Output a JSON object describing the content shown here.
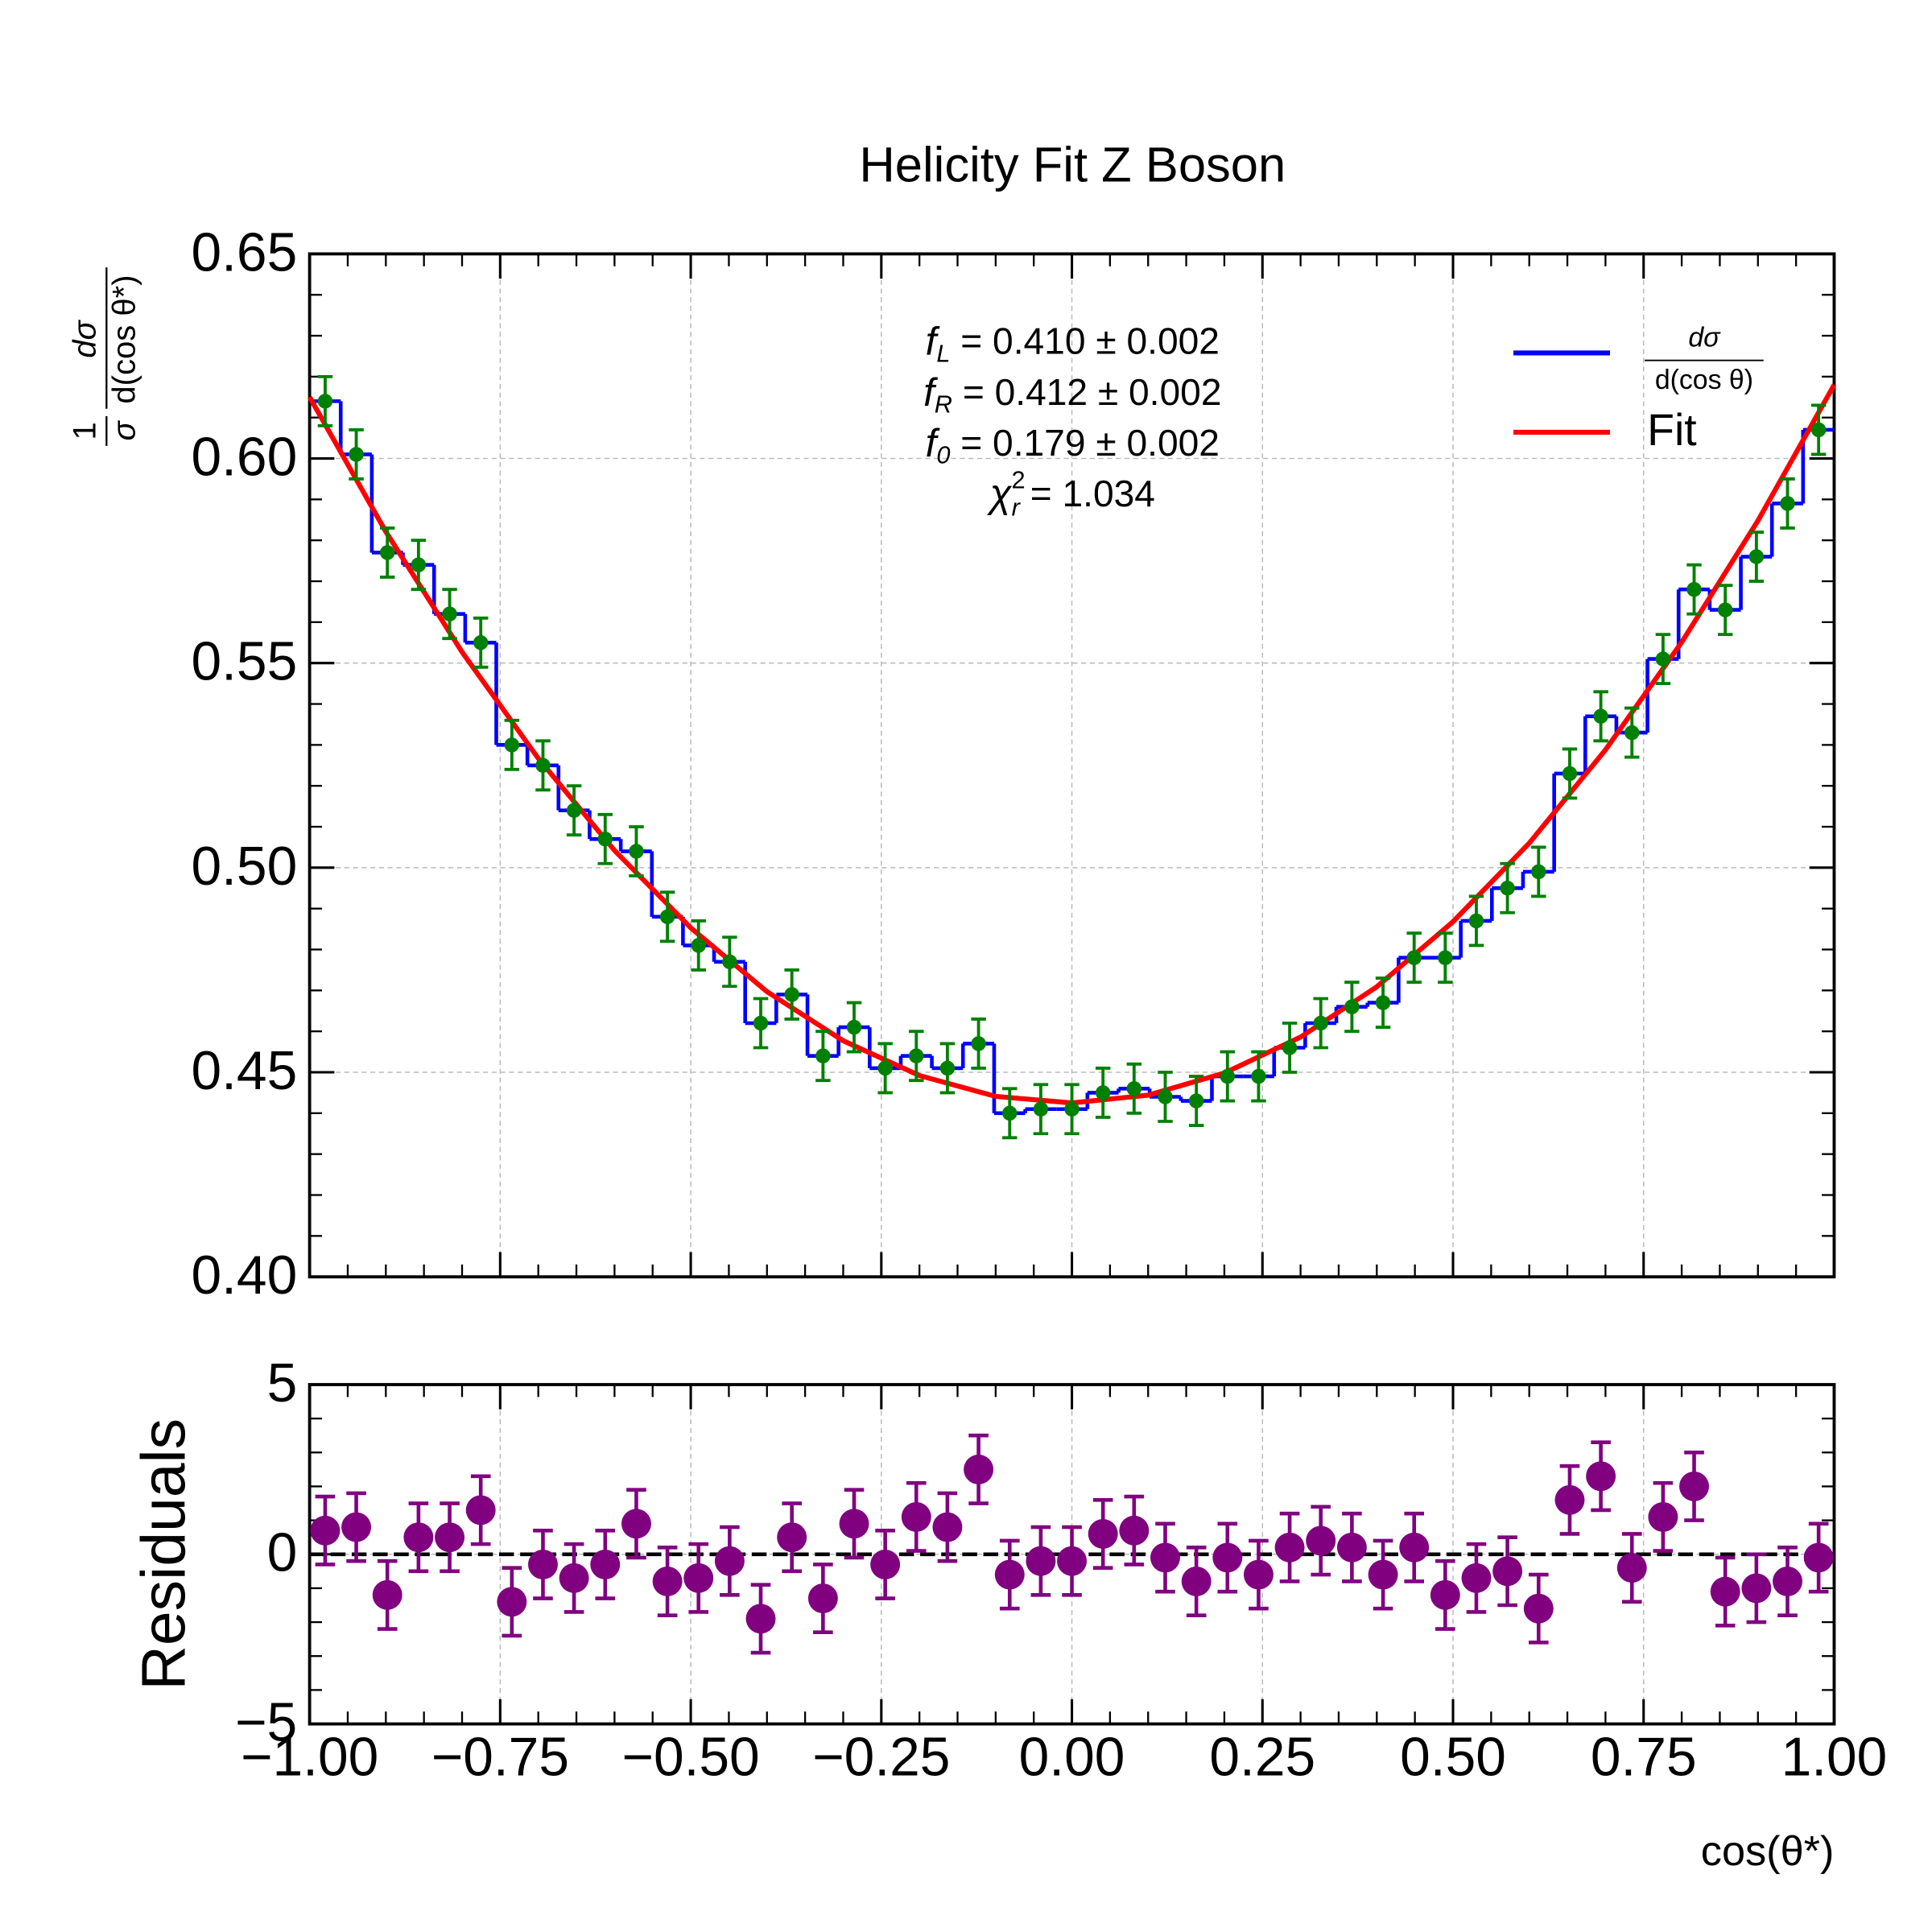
{
  "chart_data": [
    {
      "type": "histogram",
      "title": "Helicity Fit Z Boson",
      "ylabel": {
        "prefactor_numerator": "1",
        "prefactor_denominator": "σ",
        "numerator": "dσ",
        "denominator": "d(cos θ*)"
      },
      "xlim": [
        -1,
        1
      ],
      "xticks": [
        -1,
        -0.75,
        -0.5,
        -0.25,
        0,
        0.25,
        0.5,
        0.75,
        1
      ],
      "ylim": [
        0.4,
        0.65
      ],
      "yticks": [
        {
          "value": 0.4,
          "label": "0.40"
        },
        0.45,
        {
          "value": 0.5,
          "label": "0.50"
        },
        0.55,
        {
          "value": 0.6,
          "label": "0.60"
        },
        0.65
      ],
      "grid": true,
      "legend": "upper right",
      "bins": [
        -1,
        -0.9592,
        -0.9184,
        -0.8776,
        -0.8367,
        -0.7959,
        -0.7551,
        -0.7143,
        -0.6735,
        -0.6327,
        -0.5918,
        -0.551,
        -0.5102,
        -0.4694,
        -0.4286,
        -0.3878,
        -0.3469,
        -0.3061,
        -0.2653,
        -0.2245,
        -0.1837,
        -0.1429,
        -0.102,
        -0.0612,
        -0.0204,
        0.0204,
        0.0612,
        0.102,
        0.1429,
        0.1837,
        0.2245,
        0.2653,
        0.3061,
        0.3469,
        0.3878,
        0.4286,
        0.4694,
        0.5102,
        0.551,
        0.5918,
        0.6327,
        0.6735,
        0.7143,
        0.7551,
        0.7959,
        0.8367,
        0.8776,
        0.9184,
        0.9592,
        1
      ],
      "series": [
        {
          "name": {
            "numerator": "dσ",
            "denominator": "d(cos θ)"
          },
          "color": "#0000ff",
          "marker_color": "#008000",
          "values": [
            0.614,
            0.601,
            0.577,
            0.574,
            0.562,
            0.555,
            0.53,
            0.525,
            0.514,
            0.507,
            0.504,
            0.488,
            0.481,
            0.477,
            0.462,
            0.469,
            0.454,
            0.461,
            0.451,
            0.454,
            0.451,
            0.457,
            0.44,
            0.441,
            0.441,
            0.445,
            0.446,
            0.444,
            0.443,
            0.449,
            0.449,
            0.456,
            0.462,
            0.466,
            0.467,
            0.478,
            0.478,
            0.487,
            0.495,
            0.499,
            0.523,
            0.537,
            0.533,
            0.551,
            0.568,
            0.563,
            0.576,
            0.589,
            0.607
          ],
          "errors": [
            0.006,
            0.006,
            0.006,
            0.006,
            0.006,
            0.006,
            0.006,
            0.006,
            0.006,
            0.006,
            0.006,
            0.006,
            0.006,
            0.006,
            0.006,
            0.006,
            0.006,
            0.006,
            0.006,
            0.006,
            0.006,
            0.006,
            0.006,
            0.006,
            0.006,
            0.006,
            0.006,
            0.006,
            0.006,
            0.006,
            0.006,
            0.006,
            0.006,
            0.006,
            0.006,
            0.006,
            0.006,
            0.006,
            0.006,
            0.006,
            0.006,
            0.006,
            0.006,
            0.006,
            0.006,
            0.006,
            0.006,
            0.006,
            0.006
          ]
        },
        {
          "name": "Fit",
          "color": "#ff0000",
          "x": [
            -1,
            -0.9,
            -0.8,
            -0.7,
            -0.6,
            -0.5,
            -0.4,
            -0.3,
            -0.2,
            -0.1,
            0,
            0.1,
            0.2,
            0.3,
            0.4,
            0.5,
            0.6,
            0.7,
            0.8,
            0.9,
            1
          ],
          "values": [
            0.615,
            0.5821,
            0.5527,
            0.5267,
            0.5042,
            0.4853,
            0.4697,
            0.4577,
            0.4492,
            0.4441,
            0.4425,
            0.4444,
            0.4498,
            0.4586,
            0.4709,
            0.4868,
            0.506,
            0.5288,
            0.5551,
            0.5848,
            0.618
          ]
        }
      ],
      "annotations": [
        {
          "symbol": "f",
          "subscript": "L",
          "text": " = 0.410 ± 0.002"
        },
        {
          "symbol": "f",
          "subscript": "R",
          "text": " = 0.412 ± 0.002"
        },
        {
          "symbol": "f",
          "subscript": "0",
          "text": " = 0.179 ± 0.002"
        },
        {
          "symbol": "χ",
          "subscript": "r",
          "superscript": "2",
          "text": " = 1.034"
        }
      ]
    },
    {
      "type": "scatter",
      "ylabel": "Residuals",
      "xlabel": "cos(θ*)",
      "xlim": [
        -1,
        1
      ],
      "xticks": [
        {
          "value": -1,
          "label": "−1.00"
        },
        {
          "value": -0.75,
          "label": "−0.75"
        },
        {
          "value": -0.5,
          "label": "−0.50"
        },
        {
          "value": -0.25,
          "label": "−0.25"
        },
        {
          "value": 0,
          "label": "0.00"
        },
        {
          "value": 0.25,
          "label": "0.25"
        },
        {
          "value": 0.5,
          "label": "0.50"
        },
        {
          "value": 0.75,
          "label": "0.75"
        },
        {
          "value": 1,
          "label": "1.00"
        }
      ],
      "ylim": [
        -5,
        5
      ],
      "yticks": [
        {
          "value": -5,
          "label": "−5"
        },
        0,
        5
      ],
      "grid": true,
      "hline": 0,
      "color": "#800080",
      "values": [
        0.7,
        0.8,
        -1.2,
        0.5,
        0.5,
        1.3,
        -1.4,
        -0.3,
        -0.7,
        -0.3,
        0.9,
        -0.8,
        -0.7,
        -0.2,
        -1.9,
        0.5,
        -1.3,
        0.9,
        -0.3,
        1.1,
        0.8,
        2.5,
        -0.6,
        -0.2,
        -0.2,
        0.6,
        0.7,
        -0.1,
        -0.8,
        -0.1,
        -0.6,
        0.2,
        0.4,
        0.2,
        -0.6,
        0.2,
        -1.2,
        -0.7,
        -0.5,
        -1.6,
        1.6,
        2.3,
        -0.4,
        1.1,
        2.0,
        -1.1,
        -1.0,
        -0.8,
        -0.1
      ],
      "errors": [
        1,
        1,
        1,
        1,
        1,
        1,
        1,
        1,
        1,
        1,
        1,
        1,
        1,
        1,
        1,
        1,
        1,
        1,
        1,
        1,
        1,
        1,
        1,
        1,
        1,
        1,
        1,
        1,
        1,
        1,
        1,
        1,
        1,
        1,
        1,
        1,
        1,
        1,
        1,
        1,
        1,
        1,
        1,
        1,
        1,
        1,
        1,
        1,
        1
      ]
    }
  ]
}
